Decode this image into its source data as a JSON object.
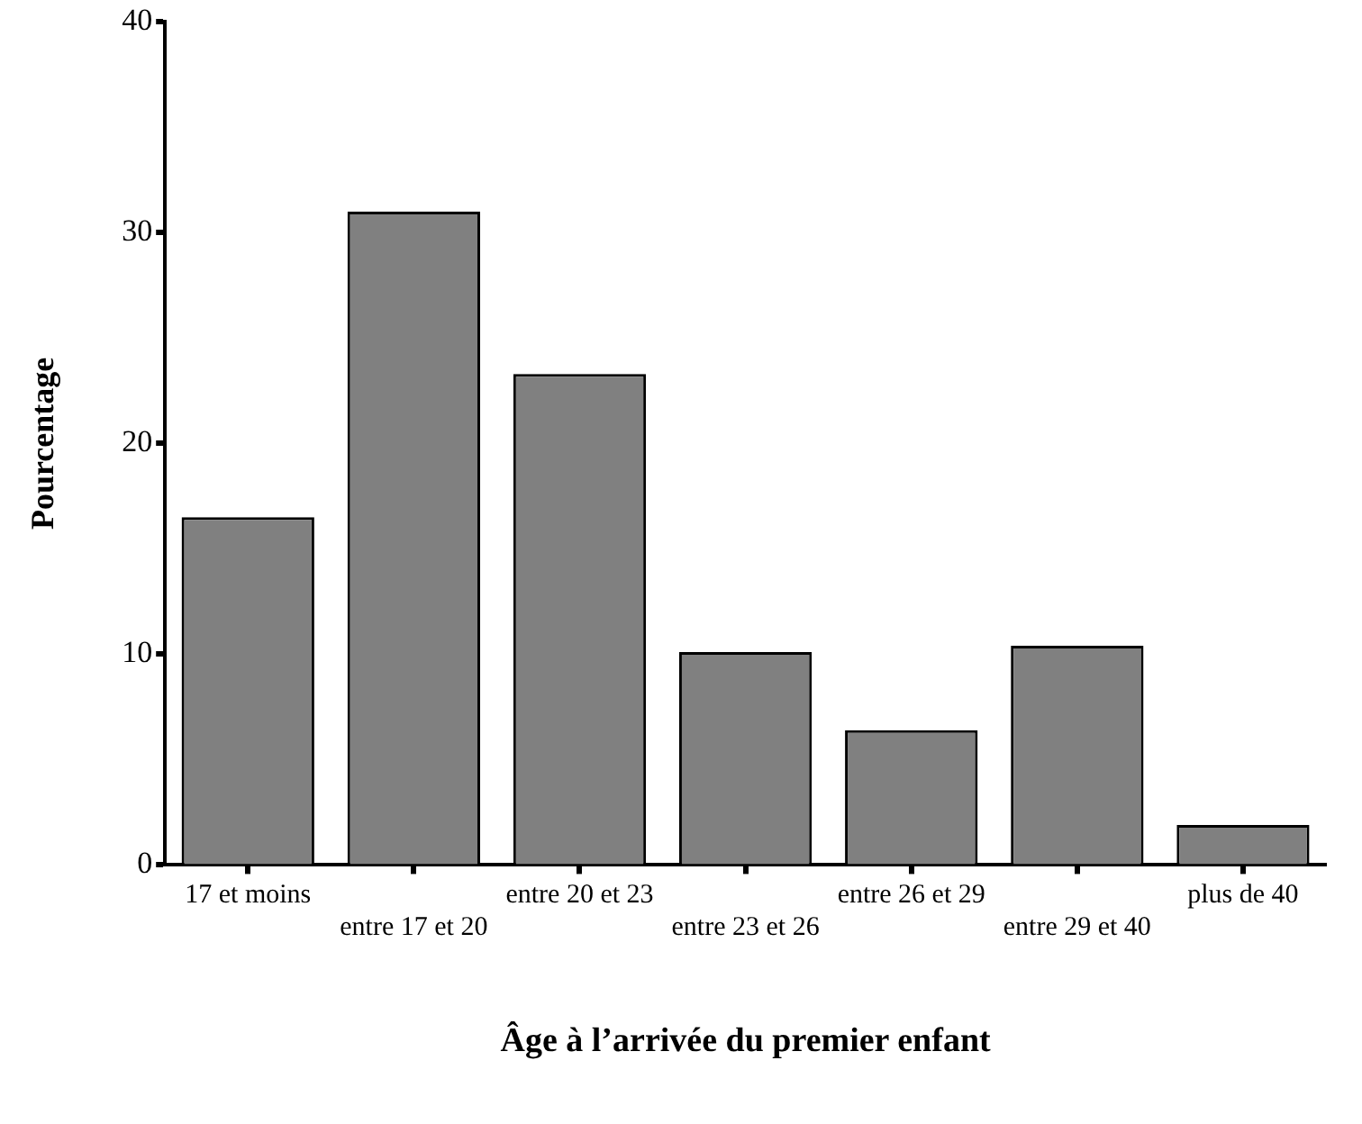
{
  "chart_data": {
    "type": "bar",
    "xlabel": "Âge à l’arrivée du premier enfant",
    "ylabel": "Pourcentage",
    "categories": [
      "17 et moins",
      "entre 17 et 20",
      "entre 20 et 23",
      "entre 23 et 26",
      "entre 26 et 29",
      "entre 29 et 40",
      "plus de 40"
    ],
    "values": [
      16.5,
      31.0,
      23.3,
      10.1,
      6.4,
      10.4,
      1.9
    ],
    "color": "#808080",
    "ylim": [
      0,
      40
    ],
    "yticks": [
      0,
      10,
      20,
      30,
      40
    ],
    "grid": false,
    "legend": false
  }
}
